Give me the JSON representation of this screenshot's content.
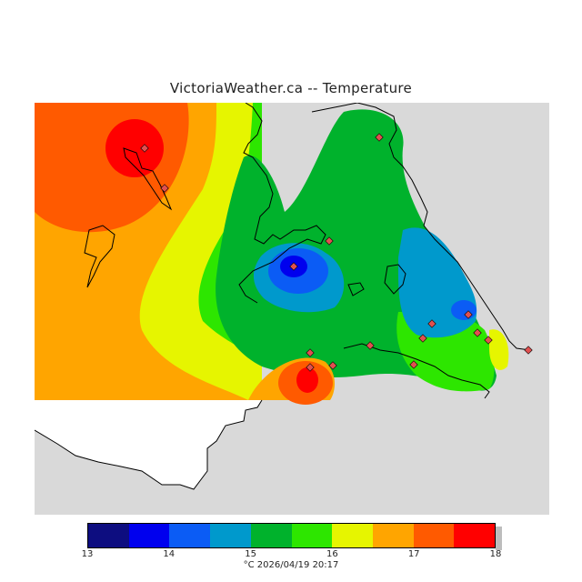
{
  "title": "VictoriaWeather.ca -- Temperature",
  "caption": "°C  2026/04/19 20:17",
  "legend": {
    "ticks": [
      "13",
      "14",
      "15",
      "16",
      "17",
      "18"
    ],
    "colors": [
      "#0d0d80",
      "#0000ee",
      "#0b5cf5",
      "#0099cc",
      "#00b22c",
      "#2de600",
      "#e6f500",
      "#ffa500",
      "#ff5a00",
      "#ff0000"
    ]
  },
  "map": {
    "land_color": "#d9d9d9",
    "water_color": "#ffffff",
    "coast_color": "#000000",
    "station_color": "#e05050"
  }
}
